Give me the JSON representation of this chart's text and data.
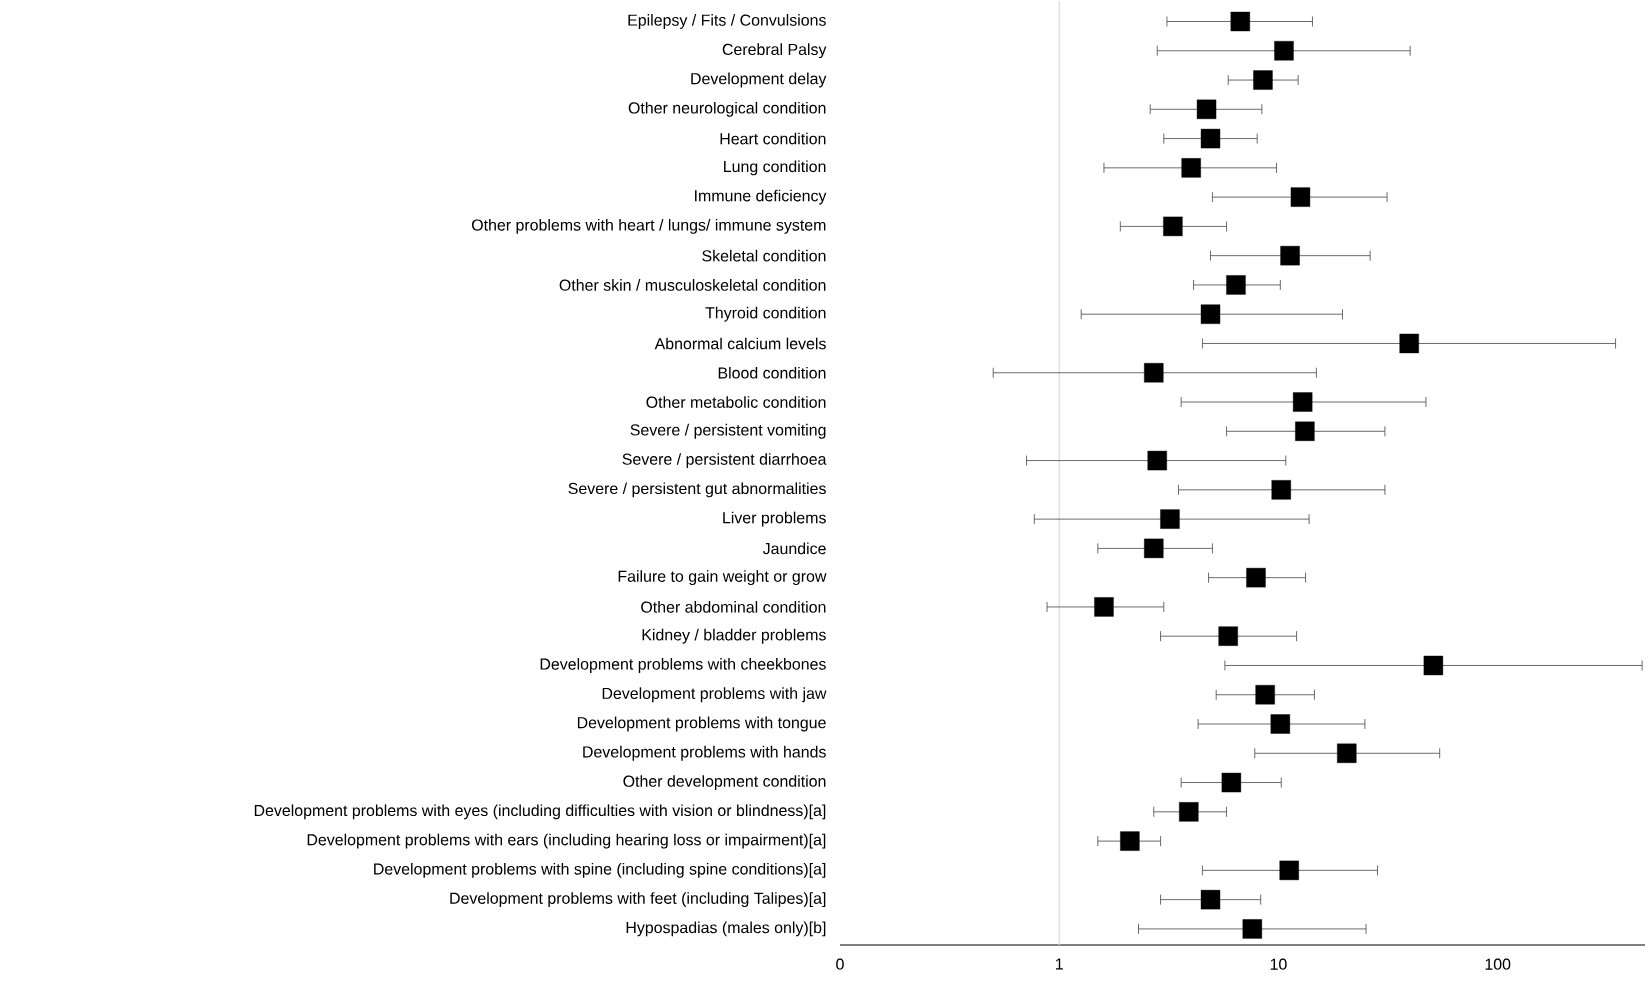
{
  "chart_data": {
    "type": "scatter",
    "orientation": "horizontal",
    "log": "x",
    "marker": "square",
    "grid": false,
    "categories": [
      "Epilepsy / Fits / Convulsions",
      "Cerebral Palsy",
      "Development delay",
      "Other neurological condition",
      "Heart condition",
      "Lung condition",
      "Immune deficiency",
      "Other problems with heart / lungs/ immune system",
      "Skeletal condition",
      "Other skin / musculoskeletal condition",
      "Thyroid condition",
      "Abnormal calcium levels",
      "Blood condition",
      "Other metabolic condition",
      "Severe / persistent vomiting",
      "Severe / persistent diarrhoea",
      "Severe / persistent gut abnormalities",
      "Liver problems",
      "Jaundice",
      "Failure to gain weight or grow",
      "Other abdominal condition",
      "Kidney / bladder problems",
      "Development problems with cheekbones",
      "Development problems with jaw",
      "Development problems with tongue",
      "Development problems with hands",
      "Other development condition",
      "Development problems with eyes (including difficulties with vision or blindness)[a]",
      "Development problems with ears (including hearing loss or impairment)[a]",
      "Development problems with spine (including spine conditions)[a]",
      "Development problems with feet (including Talipes)[a]",
      "Hypospadias (males only)[b]"
    ],
    "series": [
      {
        "color": "#000000",
        "values": [
          6.7,
          10.6,
          8.5,
          4.7,
          4.9,
          4.0,
          12.6,
          3.3,
          11.3,
          6.4,
          4.9,
          39.5,
          2.7,
          12.9,
          13.2,
          2.8,
          10.3,
          3.2,
          2.7,
          7.9,
          1.6,
          5.9,
          50.9,
          8.7,
          10.2,
          20.5,
          6.1,
          3.9,
          2.1,
          11.2,
          4.9,
          7.6
        ],
        "errors": [
          [
            3.1,
            14.3
          ],
          [
            2.8,
            39.9
          ],
          [
            5.9,
            12.3
          ],
          [
            2.6,
            8.4
          ],
          [
            3.0,
            8.0
          ],
          [
            1.6,
            9.8
          ],
          [
            5.0,
            31.3
          ],
          [
            1.9,
            5.8
          ],
          [
            4.9,
            26.2
          ],
          [
            4.1,
            10.2
          ],
          [
            1.26,
            19.6
          ],
          [
            4.5,
            345
          ],
          [
            0.5,
            14.9
          ],
          [
            3.6,
            47.1
          ],
          [
            5.8,
            30.6
          ],
          [
            0.71,
            10.8
          ],
          [
            3.5,
            30.6
          ],
          [
            0.77,
            13.8
          ],
          [
            1.5,
            5.0
          ],
          [
            4.8,
            13.3
          ],
          [
            0.88,
            3.0
          ],
          [
            2.9,
            12.1
          ],
          [
            5.7,
            456
          ],
          [
            5.2,
            14.6
          ],
          [
            4.3,
            24.8
          ],
          [
            7.8,
            54.4
          ],
          [
            3.6,
            10.3
          ],
          [
            2.7,
            5.8
          ],
          [
            1.5,
            2.9
          ],
          [
            4.5,
            28.3
          ],
          [
            2.9,
            8.3
          ],
          [
            2.3,
            25.1
          ]
        ]
      }
    ],
    "xlim": [
      0.1,
      470
    ],
    "xticks": [
      {
        "value": 0.1,
        "label": "0"
      },
      1,
      10,
      100
    ],
    "ref_lines": [
      {
        "axis": "x",
        "value": 1,
        "color": "#d9d9d9"
      }
    ]
  }
}
